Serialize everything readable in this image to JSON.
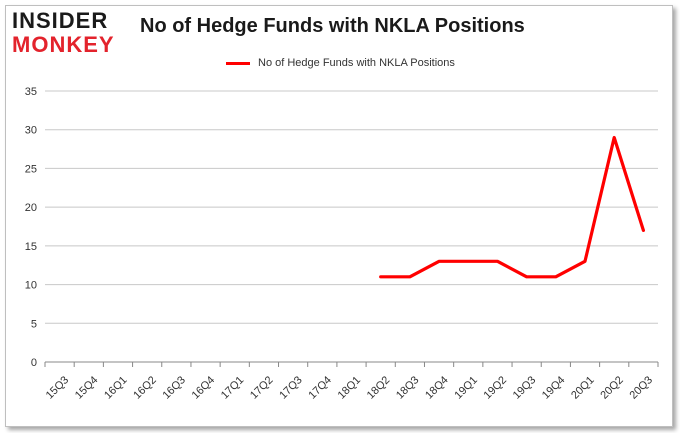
{
  "brand": {
    "line1": "INSIDER",
    "line2": "MONKEY"
  },
  "colors": {
    "series": "#ff0000",
    "grid": "#c8c8c8",
    "axis": "#888888",
    "brand_red": "#e3232c"
  },
  "chart_data": {
    "type": "line",
    "title": "No of Hedge Funds with NKLA Positions",
    "xlabel": "",
    "ylabel": "",
    "ylim": [
      0,
      35
    ],
    "yticks": [
      0,
      5,
      10,
      15,
      20,
      25,
      30,
      35
    ],
    "grid": true,
    "legend": "top-center",
    "categories": [
      "15Q3",
      "15Q4",
      "16Q1",
      "16Q2",
      "16Q3",
      "16Q4",
      "17Q1",
      "17Q2",
      "17Q3",
      "17Q4",
      "18Q1",
      "18Q2",
      "18Q3",
      "18Q4",
      "19Q1",
      "19Q2",
      "19Q3",
      "19Q4",
      "20Q1",
      "20Q2",
      "20Q3"
    ],
    "series": [
      {
        "name": "No of Hedge Funds with NKLA Positions",
        "values": [
          null,
          null,
          null,
          null,
          null,
          null,
          null,
          null,
          null,
          null,
          null,
          11,
          11,
          13,
          13,
          13,
          11,
          11,
          13,
          29,
          17
        ]
      }
    ]
  }
}
